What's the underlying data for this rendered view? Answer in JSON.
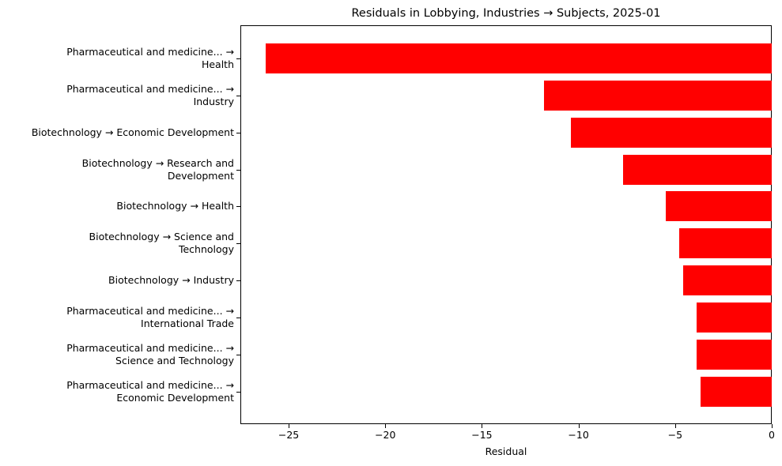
{
  "chart_data": {
    "type": "bar",
    "orientation": "horizontal",
    "title": "Residuals in Lobbying, Industries → Subjects, 2025-01",
    "xlabel": "Residual",
    "ylabel": "",
    "xlim": [
      -27.5,
      0
    ],
    "xticks": [
      -25,
      -20,
      -15,
      -10,
      -5,
      0
    ],
    "xtick_labels": [
      "−25",
      "−20",
      "−15",
      "−10",
      "−5",
      "0"
    ],
    "grid": false,
    "legend": null,
    "bar_color": "#ff0000",
    "categories": [
      "Pharmaceutical and medicine... →\nHealth",
      "Pharmaceutical and medicine... →\nIndustry",
      "Biotechnology → Economic Development",
      "Biotechnology → Research and\nDevelopment",
      "Biotechnology → Health",
      "Biotechnology → Science and\nTechnology",
      "Biotechnology → Industry",
      "Pharmaceutical and medicine... →\nInternational Trade",
      "Pharmaceutical and medicine... →\nScience and Technology",
      "Pharmaceutical and medicine... →\nEconomic Development"
    ],
    "values": [
      -26.2,
      -11.8,
      -10.4,
      -7.7,
      -5.5,
      -4.8,
      -4.6,
      -3.9,
      -3.9,
      -3.7
    ]
  }
}
